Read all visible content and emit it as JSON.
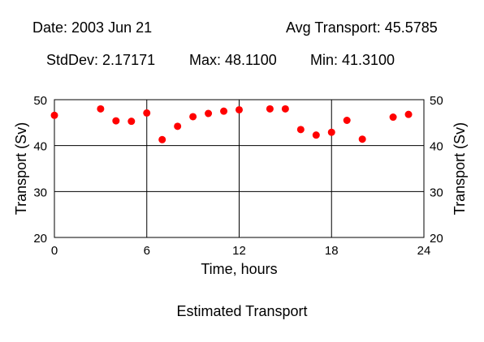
{
  "header": {
    "date": "Date: 2003 Jun 21",
    "avg": "Avg Transport: 45.5785",
    "stddev": "StdDev: 2.17171",
    "max": "Max: 48.1100",
    "min": "Min: 41.3100"
  },
  "caption": "Estimated Transport",
  "colors": {
    "points": "#ff0000",
    "axes": "#000000"
  },
  "chart_data": {
    "type": "scatter",
    "title": "",
    "xlabel": "Time, hours",
    "ylabel": "Transport (Sv)",
    "y2label": "Transport (Sv)",
    "xlim": [
      0,
      24
    ],
    "ylim": [
      20,
      50
    ],
    "xticks": [
      0,
      6,
      12,
      18,
      24
    ],
    "yticks": [
      20,
      30,
      40,
      50
    ],
    "grid": true,
    "series": [
      {
        "x": [
          0,
          3,
          4,
          5,
          6,
          7,
          8,
          9,
          10,
          11,
          12,
          14,
          15,
          16,
          17,
          18,
          19,
          20,
          22,
          23
        ],
        "y": [
          46.6,
          48.0,
          45.4,
          45.3,
          47.1,
          41.3,
          44.2,
          46.3,
          47.0,
          47.5,
          47.8,
          48.0,
          48.0,
          43.5,
          42.3,
          42.9,
          45.5,
          41.4,
          46.2,
          46.8
        ]
      }
    ]
  }
}
